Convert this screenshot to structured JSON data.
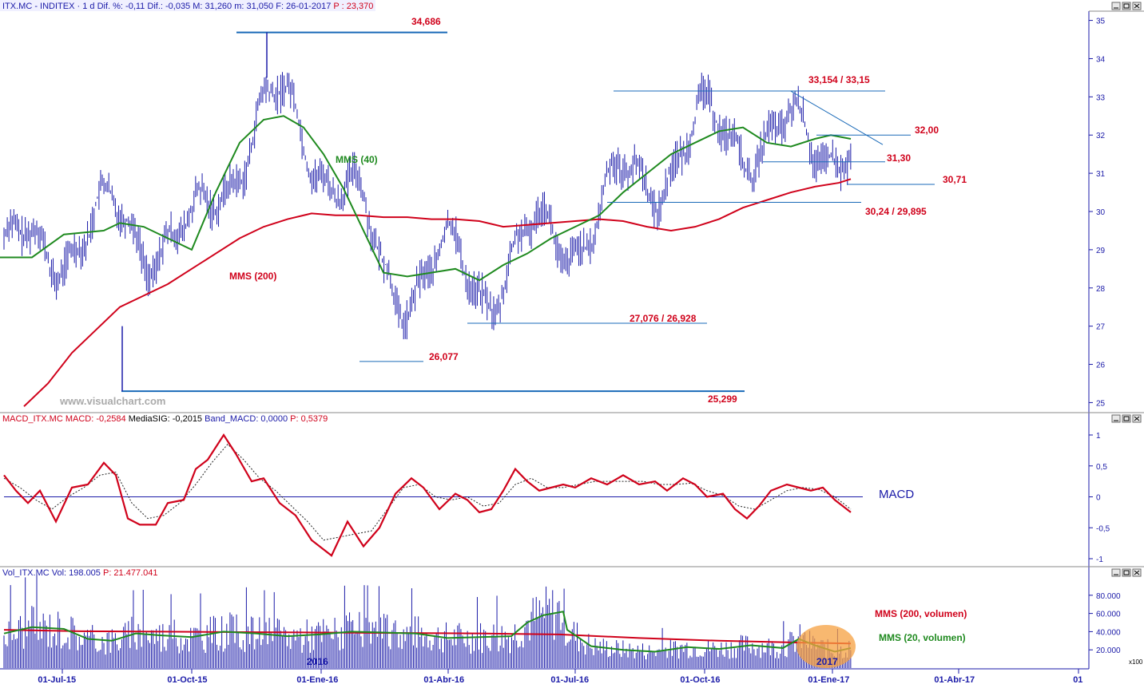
{
  "chart_data": [
    {
      "type": "ohlc",
      "panel": "price",
      "header": {
        "symbol": "ITX.MC - INDITEX",
        "period": "1 d",
        "change_pct": "Dif. %: -0,11",
        "change": "Dif.: -0,035",
        "high": "M: 31,260",
        "low": "m: 31,050",
        "date": "F: 26-01-2017",
        "price": "P : 23,370"
      },
      "ylim": [
        24.8,
        35.2
      ],
      "y_ticks": [
        "25",
        "26",
        "27",
        "28",
        "29",
        "30",
        "31",
        "32",
        "33",
        "34",
        "35"
      ],
      "x_ticks": [
        "01-Jul-15",
        "01-Oct-15",
        "01-Ene-16",
        "01-Abr-16",
        "01-Jul-16",
        "01-Oct-16",
        "01-Ene-17",
        "01-Abr-17",
        "01"
      ],
      "watermark": "www.visualchart.com",
      "series": [
        {
          "name": "MMS (40)",
          "color": "#1f8a1f"
        },
        {
          "name": "MMS (200)",
          "color": "#d0021b"
        }
      ],
      "levels": [
        {
          "label": "34,686",
          "value": 34.686
        },
        {
          "label": "33,154 / 33,15",
          "value": 33.154
        },
        {
          "label": "32,00",
          "value": 32.0
        },
        {
          "label": "31,30",
          "value": 31.3
        },
        {
          "label": "30,71",
          "value": 30.71
        },
        {
          "label": "30,24 / 29,895",
          "value": 30.24
        },
        {
          "label": "27,076 / 26,928",
          "value": 27.076
        },
        {
          "label": "26,077",
          "value": 26.077
        },
        {
          "label": "25,299",
          "value": 25.299
        }
      ],
      "ma40_points": [
        [
          0,
          28.8
        ],
        [
          40,
          28.8
        ],
        [
          80,
          29.4
        ],
        [
          130,
          29.5
        ],
        [
          150,
          29.7
        ],
        [
          180,
          29.6
        ],
        [
          210,
          29.3
        ],
        [
          240,
          29.0
        ],
        [
          270,
          30.5
        ],
        [
          300,
          31.8
        ],
        [
          330,
          32.4
        ],
        [
          355,
          32.5
        ],
        [
          380,
          32.2
        ],
        [
          405,
          31.5
        ],
        [
          430,
          30.6
        ],
        [
          455,
          29.5
        ],
        [
          480,
          28.4
        ],
        [
          510,
          28.3
        ],
        [
          540,
          28.4
        ],
        [
          570,
          28.5
        ],
        [
          600,
          28.2
        ],
        [
          630,
          28.6
        ],
        [
          660,
          28.9
        ],
        [
          690,
          29.3
        ],
        [
          720,
          29.6
        ],
        [
          750,
          29.9
        ],
        [
          780,
          30.5
        ],
        [
          810,
          31.0
        ],
        [
          840,
          31.5
        ],
        [
          870,
          31.8
        ],
        [
          900,
          32.1
        ],
        [
          930,
          32.2
        ],
        [
          960,
          31.8
        ],
        [
          990,
          31.7
        ],
        [
          1020,
          31.9
        ],
        [
          1040,
          32.0
        ],
        [
          1065,
          31.9
        ]
      ],
      "ma200_points": [
        [
          30,
          24.9
        ],
        [
          60,
          25.5
        ],
        [
          90,
          26.3
        ],
        [
          120,
          26.9
        ],
        [
          150,
          27.5
        ],
        [
          180,
          27.8
        ],
        [
          210,
          28.1
        ],
        [
          240,
          28.5
        ],
        [
          270,
          28.9
        ],
        [
          300,
          29.3
        ],
        [
          330,
          29.6
        ],
        [
          360,
          29.8
        ],
        [
          390,
          29.95
        ],
        [
          420,
          29.9
        ],
        [
          450,
          29.9
        ],
        [
          480,
          29.85
        ],
        [
          510,
          29.85
        ],
        [
          540,
          29.8
        ],
        [
          570,
          29.8
        ],
        [
          600,
          29.75
        ],
        [
          630,
          29.6
        ],
        [
          660,
          29.65
        ],
        [
          690,
          29.7
        ],
        [
          720,
          29.75
        ],
        [
          750,
          29.8
        ],
        [
          780,
          29.75
        ],
        [
          810,
          29.6
        ],
        [
          840,
          29.5
        ],
        [
          870,
          29.6
        ],
        [
          900,
          29.8
        ],
        [
          930,
          30.1
        ],
        [
          960,
          30.3
        ],
        [
          990,
          30.5
        ],
        [
          1020,
          30.65
        ],
        [
          1050,
          30.75
        ],
        [
          1065,
          30.85
        ]
      ],
      "trendlines": [
        {
          "from": [
            990,
            33.15
          ],
          "to": [
            1105,
            31.75
          ]
        }
      ]
    },
    {
      "type": "line",
      "panel": "macd",
      "header": {
        "name": "MACD_ITX.MC",
        "macd": "MACD: -0,2584",
        "signal": "MediaSIG: -0,2015",
        "band": "Band_MACD: 0,0000",
        "price": "P: 0,5379"
      },
      "ylim": [
        -1.1,
        1.1
      ],
      "y_ticks": [
        "1",
        "0,5",
        "0",
        "-0,5",
        "-1"
      ],
      "label": "MACD",
      "macd_points": [
        [
          5,
          0.35
        ],
        [
          20,
          0.1
        ],
        [
          35,
          -0.1
        ],
        [
          50,
          0.1
        ],
        [
          70,
          -0.4
        ],
        [
          90,
          0.15
        ],
        [
          110,
          0.2
        ],
        [
          130,
          0.55
        ],
        [
          145,
          0.35
        ],
        [
          160,
          -0.35
        ],
        [
          175,
          -0.45
        ],
        [
          195,
          -0.45
        ],
        [
          210,
          -0.1
        ],
        [
          230,
          -0.05
        ],
        [
          245,
          0.45
        ],
        [
          260,
          0.6
        ],
        [
          280,
          1.0
        ],
        [
          295,
          0.7
        ],
        [
          315,
          0.25
        ],
        [
          330,
          0.3
        ],
        [
          350,
          -0.1
        ],
        [
          370,
          -0.3
        ],
        [
          390,
          -0.7
        ],
        [
          415,
          -0.95
        ],
        [
          435,
          -0.4
        ],
        [
          455,
          -0.8
        ],
        [
          475,
          -0.5
        ],
        [
          495,
          0.05
        ],
        [
          515,
          0.3
        ],
        [
          530,
          0.15
        ],
        [
          550,
          -0.2
        ],
        [
          570,
          0.05
        ],
        [
          585,
          -0.05
        ],
        [
          600,
          -0.25
        ],
        [
          615,
          -0.2
        ],
        [
          630,
          0.1
        ],
        [
          645,
          0.45
        ],
        [
          660,
          0.25
        ],
        [
          675,
          0.1
        ],
        [
          690,
          0.15
        ],
        [
          705,
          0.2
        ],
        [
          720,
          0.15
        ],
        [
          740,
          0.3
        ],
        [
          760,
          0.2
        ],
        [
          780,
          0.35
        ],
        [
          800,
          0.2
        ],
        [
          820,
          0.25
        ],
        [
          835,
          0.1
        ],
        [
          855,
          0.3
        ],
        [
          870,
          0.2
        ],
        [
          885,
          0.0
        ],
        [
          905,
          0.05
        ],
        [
          920,
          -0.2
        ],
        [
          935,
          -0.35
        ],
        [
          950,
          -0.15
        ],
        [
          965,
          0.1
        ],
        [
          985,
          0.2
        ],
        [
          1000,
          0.15
        ],
        [
          1015,
          0.1
        ],
        [
          1030,
          0.15
        ],
        [
          1045,
          -0.05
        ],
        [
          1065,
          -0.25
        ]
      ],
      "signal_points": [
        [
          5,
          0.3
        ],
        [
          25,
          0.15
        ],
        [
          45,
          -0.05
        ],
        [
          65,
          -0.2
        ],
        [
          85,
          0.0
        ],
        [
          105,
          0.15
        ],
        [
          125,
          0.35
        ],
        [
          145,
          0.4
        ],
        [
          165,
          -0.1
        ],
        [
          185,
          -0.35
        ],
        [
          205,
          -0.3
        ],
        [
          225,
          -0.1
        ],
        [
          245,
          0.2
        ],
        [
          265,
          0.55
        ],
        [
          285,
          0.85
        ],
        [
          305,
          0.6
        ],
        [
          325,
          0.3
        ],
        [
          345,
          0.1
        ],
        [
          365,
          -0.15
        ],
        [
          385,
          -0.4
        ],
        [
          405,
          -0.7
        ],
        [
          425,
          -0.65
        ],
        [
          445,
          -0.6
        ],
        [
          465,
          -0.55
        ],
        [
          485,
          -0.2
        ],
        [
          505,
          0.15
        ],
        [
          525,
          0.2
        ],
        [
          545,
          0.0
        ],
        [
          565,
          -0.05
        ],
        [
          585,
          0.0
        ],
        [
          605,
          -0.15
        ],
        [
          625,
          -0.1
        ],
        [
          645,
          0.2
        ],
        [
          665,
          0.3
        ],
        [
          685,
          0.15
        ],
        [
          705,
          0.15
        ],
        [
          725,
          0.2
        ],
        [
          745,
          0.25
        ],
        [
          765,
          0.25
        ],
        [
          785,
          0.25
        ],
        [
          805,
          0.25
        ],
        [
          825,
          0.2
        ],
        [
          845,
          0.2
        ],
        [
          865,
          0.22
        ],
        [
          885,
          0.1
        ],
        [
          905,
          0.02
        ],
        [
          925,
          -0.15
        ],
        [
          945,
          -0.2
        ],
        [
          965,
          -0.05
        ],
        [
          985,
          0.1
        ],
        [
          1005,
          0.15
        ],
        [
          1025,
          0.12
        ],
        [
          1045,
          0.0
        ],
        [
          1065,
          -0.2
        ]
      ]
    },
    {
      "type": "bar",
      "panel": "volume",
      "header": {
        "name": "Vol_ITX.MC",
        "vol": "Vol: 198.005",
        "price": "P: 21.477.041"
      },
      "ylim": [
        0,
        100000
      ],
      "y_ticks": [
        "80.000",
        "60.000",
        "40.000",
        "20.000"
      ],
      "scale_note": "x100",
      "year_labels": [
        "2016",
        "2017"
      ],
      "series": [
        {
          "name": "MMS (200, volumen)",
          "color": "#d0021b"
        },
        {
          "name": "MMS (20, volumen)",
          "color": "#1f8a1f"
        }
      ],
      "ma200_points": [
        [
          5,
          42000
        ],
        [
          100,
          40500
        ],
        [
          200,
          40000
        ],
        [
          300,
          39500
        ],
        [
          400,
          39000
        ],
        [
          500,
          38500
        ],
        [
          600,
          38000
        ],
        [
          700,
          37000
        ],
        [
          800,
          33000
        ],
        [
          900,
          30000
        ],
        [
          1000,
          28000
        ],
        [
          1065,
          27000
        ]
      ],
      "ma20_points": [
        [
          5,
          38000
        ],
        [
          40,
          45000
        ],
        [
          80,
          43000
        ],
        [
          110,
          32000
        ],
        [
          140,
          30000
        ],
        [
          170,
          38000
        ],
        [
          200,
          36000
        ],
        [
          240,
          34000
        ],
        [
          280,
          40000
        ],
        [
          320,
          38000
        ],
        [
          360,
          35000
        ],
        [
          400,
          37000
        ],
        [
          440,
          40000
        ],
        [
          480,
          39000
        ],
        [
          520,
          38000
        ],
        [
          560,
          33000
        ],
        [
          600,
          34000
        ],
        [
          640,
          35000
        ],
        [
          660,
          50000
        ],
        [
          680,
          58000
        ],
        [
          705,
          62000
        ],
        [
          710,
          42000
        ],
        [
          740,
          24000
        ],
        [
          780,
          20000
        ],
        [
          820,
          18000
        ],
        [
          860,
          23000
        ],
        [
          900,
          21000
        ],
        [
          940,
          25000
        ],
        [
          980,
          22000
        ],
        [
          1000,
          32000
        ],
        [
          1020,
          25000
        ],
        [
          1045,
          18000
        ],
        [
          1065,
          22000
        ]
      ]
    }
  ]
}
